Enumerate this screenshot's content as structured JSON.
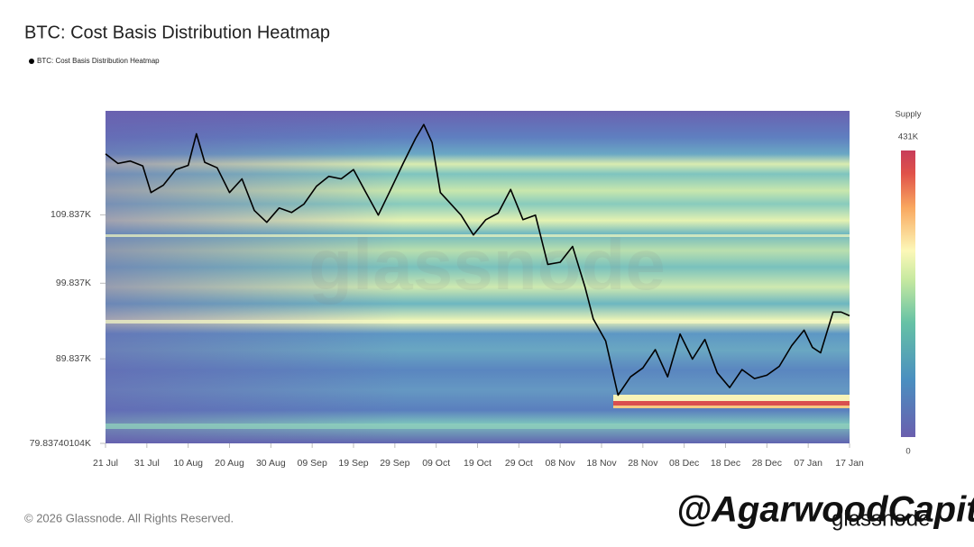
{
  "chart_data": {
    "type": "line",
    "title": "BTC: Cost Basis Distribution Heatmap",
    "legend": "BTC: Cost Basis Distribution Heatmap",
    "watermark": "glassnode",
    "footer": "© 2026 Glassnode. All Rights Reserved.",
    "logo": "glassnode",
    "overlay_text": "@AgarwoodCapital",
    "log_scale": true,
    "color": "#000000",
    "ylim": [
      79837.40104,
      127000
    ],
    "yticks": [
      {
        "value": 79837.40104,
        "label": "79.83740104K"
      },
      {
        "value": 89837,
        "label": "89.837K"
      },
      {
        "value": 99837,
        "label": "99.837K"
      },
      {
        "value": 109837,
        "label": "109.837K"
      }
    ],
    "xlim": [
      "21 Jul",
      "17 Jan"
    ],
    "xticks": [
      "21 Jul",
      "31 Jul",
      "10 Aug",
      "20 Aug",
      "30 Aug",
      "09 Sep",
      "19 Sep",
      "29 Sep",
      "09 Oct",
      "19 Oct",
      "29 Oct",
      "08 Nov",
      "18 Nov",
      "28 Nov",
      "08 Dec",
      "18 Dec",
      "28 Dec",
      "07 Jan",
      "17 Jan"
    ],
    "x": [
      "21 Jul",
      "24 Jul",
      "27 Jul",
      "30 Jul",
      "1 Aug",
      "4 Aug",
      "7 Aug",
      "10 Aug",
      "12 Aug",
      "14 Aug",
      "17 Aug",
      "20 Aug",
      "23 Aug",
      "26 Aug",
      "29 Aug",
      "1 Sep",
      "4 Sep",
      "7 Sep",
      "10 Sep",
      "13 Sep",
      "16 Sep",
      "19 Sep",
      "22 Sep",
      "25 Sep",
      "28 Sep",
      "1 Oct",
      "4 Oct",
      "6 Oct",
      "8 Oct",
      "10 Oct",
      "12 Oct",
      "15 Oct",
      "18 Oct",
      "21 Oct",
      "24 Oct",
      "27 Oct",
      "30 Oct",
      "2 Nov",
      "5 Nov",
      "8 Nov",
      "11 Nov",
      "14 Nov",
      "16 Nov",
      "19 Nov",
      "22 Nov",
      "25 Nov",
      "28 Nov",
      "1 Dec",
      "4 Dec",
      "7 Dec",
      "10 Dec",
      "13 Dec",
      "16 Dec",
      "19 Dec",
      "22 Dec",
      "25 Dec",
      "28 Dec",
      "31 Dec",
      "3 Jan",
      "6 Jan",
      "8 Jan",
      "10 Jan",
      "13 Jan",
      "15 Jan",
      "17 Jan"
    ],
    "values": [
      119600,
      118000,
      118400,
      117600,
      113300,
      114500,
      117000,
      117700,
      123000,
      118200,
      117300,
      113300,
      115500,
      110500,
      108700,
      110900,
      110200,
      111500,
      114300,
      115900,
      115500,
      117000,
      113300,
      109800,
      113800,
      118000,
      122200,
      124600,
      121500,
      113300,
      111900,
      109800,
      106800,
      109100,
      110100,
      113800,
      109100,
      109800,
      102500,
      102800,
      105100,
      99300,
      95000,
      92100,
      85400,
      87600,
      88700,
      91000,
      87600,
      93000,
      89800,
      92300,
      88100,
      86300,
      88500,
      87400,
      87800,
      88900,
      91500,
      93500,
      91300,
      90600,
      95900,
      95900,
      95400
    ],
    "colorbar": {
      "label": "Supply",
      "ticks": [
        0,
        {
          "value": 431000,
          "label": "431K"
        }
      ]
    }
  }
}
